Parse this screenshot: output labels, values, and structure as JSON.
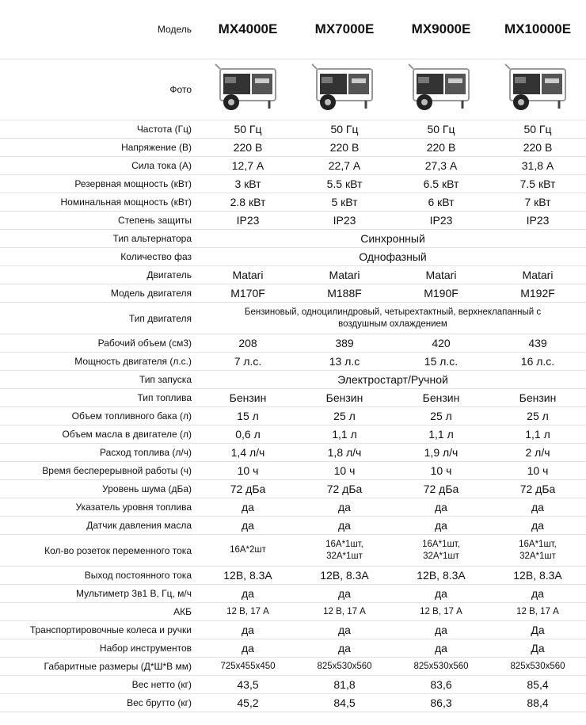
{
  "table": {
    "corner": "Модель",
    "models": [
      "MX4000E",
      "MX7000E",
      "MX9000E",
      "MX10000E"
    ],
    "photo_label": "Фото",
    "rows": [
      {
        "label": "Частота (Гц)",
        "values": [
          "50 Гц",
          "50 Гц",
          "50 Гц",
          "50 Гц"
        ]
      },
      {
        "label": "Напряжение (В)",
        "values": [
          "220 В",
          "220 В",
          "220 В",
          "220 В"
        ]
      },
      {
        "label": "Сила тока (А)",
        "values": [
          "12,7 А",
          "22,7 А",
          "27,3 А",
          "31,8 А"
        ]
      },
      {
        "label": "Резервная мощность (кВт)",
        "values": [
          "3 кВт",
          "5.5 кВт",
          "6.5 кВт",
          "7.5 кВт"
        ]
      },
      {
        "label": "Номинальная мощность (кВт)",
        "values": [
          "2.8 кВт",
          "5 кВт",
          "6 кВт",
          "7 кВт"
        ]
      },
      {
        "label": "Степень защиты",
        "values": [
          "IP23",
          "IP23",
          "IP23",
          "IP23"
        ]
      },
      {
        "label": "Тип альтернатора",
        "values": [
          "Синхронный"
        ]
      },
      {
        "label": "Количество фаз",
        "values": [
          "Однофазный"
        ]
      },
      {
        "label": "Двигатель",
        "values": [
          "Matari",
          "Matari",
          "Matari",
          "Matari"
        ]
      },
      {
        "label": "Модель двигателя",
        "values": [
          "M170F",
          "M188F",
          "M190F",
          "M192F"
        ]
      },
      {
        "label": "Тип двигателя",
        "values": [
          "Бензиновый, одноцилиндровый, четырехтактный, верхнеклапанный с\nвоздушным охлаждением"
        ]
      },
      {
        "label": "Рабочий объем (см3)",
        "values": [
          "208",
          "389",
          "420",
          "439"
        ]
      },
      {
        "label": "Мощность двигателя (л.с.)",
        "values": [
          "7 л.с.",
          "13 л.с",
          "15 л.с.",
          "16 л.с."
        ]
      },
      {
        "label": "Тип запуска",
        "values": [
          "Электростарт/Ручной"
        ]
      },
      {
        "label": "Тип топлива",
        "values": [
          "Бензин",
          "Бензин",
          "Бензин",
          "Бензин"
        ]
      },
      {
        "label": "Объем топливного бака (л)",
        "values": [
          "15 л",
          "25 л",
          "25 л",
          "25 л"
        ]
      },
      {
        "label": "Объем масла в двигателе (л)",
        "values": [
          "0,6 л",
          "1,1 л",
          "1,1 л",
          "1,1 л"
        ]
      },
      {
        "label": "Расход топлива (л/ч)",
        "values": [
          "1,4 л/ч",
          "1,8 л/ч",
          "1,9 л/ч",
          "2 л/ч"
        ]
      },
      {
        "label": "Время бесперерывной работы (ч)",
        "values": [
          "10 ч",
          "10 ч",
          "10 ч",
          "10 ч"
        ]
      },
      {
        "label": "Уровень шума (дБа)",
        "values": [
          "72 дБа",
          "72 дБа",
          "72 дБа",
          "72 дБа"
        ]
      },
      {
        "label": "Указатель уровня топлива",
        "values": [
          "да",
          "да",
          "да",
          "да"
        ]
      },
      {
        "label": "Датчик давления масла",
        "values": [
          "да",
          "да",
          "да",
          "да"
        ]
      },
      {
        "label": "Кол-во розеток переменного тока",
        "values": [
          "16А*2шт",
          "16А*1шт,\n32А*1шт",
          "16А*1шт,\n32А*1шт",
          "16А*1шт,\n32А*1шт"
        ]
      },
      {
        "label": "Выход постоянного тока",
        "values": [
          "12В, 8.3А",
          "12В, 8.3А",
          "12В, 8.3А",
          "12В, 8.3А"
        ]
      },
      {
        "label": "Мультиметр 3в1  В, Гц, м/ч",
        "values": [
          "да",
          "да",
          "да",
          "да"
        ]
      },
      {
        "label": "АКБ",
        "values": [
          "12 В, 17 А",
          "12 В, 17 А",
          "12 В, 17 А",
          "12 В, 17 А"
        ]
      },
      {
        "label": "Транспортировочные колеса и ручки",
        "values": [
          "да",
          "да",
          "да",
          "Да"
        ]
      },
      {
        "label": "Набор инструментов",
        "values": [
          "да",
          "да",
          "да",
          "Да"
        ]
      },
      {
        "label": "Габаритные размеры (Д*Ш*В мм)",
        "values": [
          "725x455x450",
          "825x530x560",
          "825x530x560",
          "825x530x560"
        ]
      },
      {
        "label": "Вес нетто (кг)",
        "values": [
          "43,5",
          "81,8",
          "83,6",
          "85,4"
        ]
      },
      {
        "label": "Вес брутто (кг)",
        "values": [
          "45,2",
          "84,5",
          "86,3",
          "88,4"
        ]
      }
    ]
  }
}
